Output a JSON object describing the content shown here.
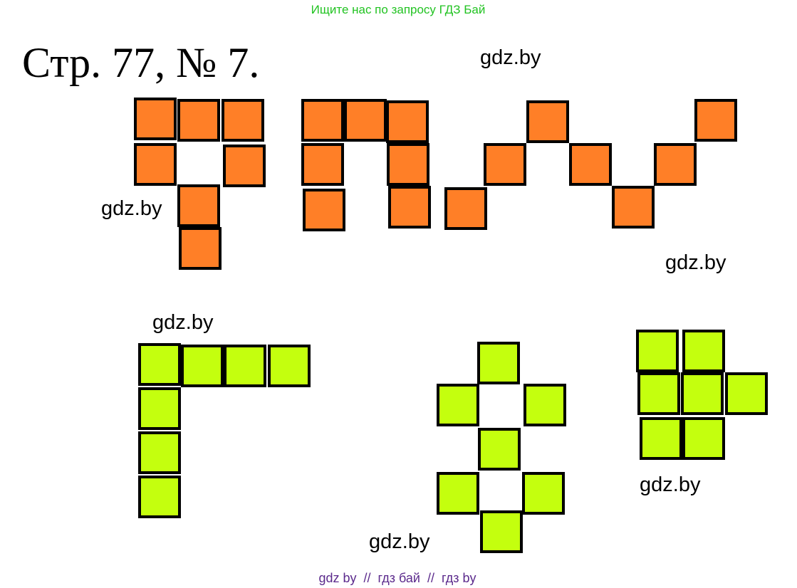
{
  "header": {
    "banner": "Ищите нас по запросу ГДЗ Бай",
    "title": "Стр. 77, № 7."
  },
  "watermarks": [
    "gdz.by",
    "gdz.by",
    "gdz.by",
    "gdz.by",
    "gdz.by",
    "gdz.by"
  ],
  "footer": {
    "links": "gdz by  //  гдз бай  //  гдз by"
  }
}
